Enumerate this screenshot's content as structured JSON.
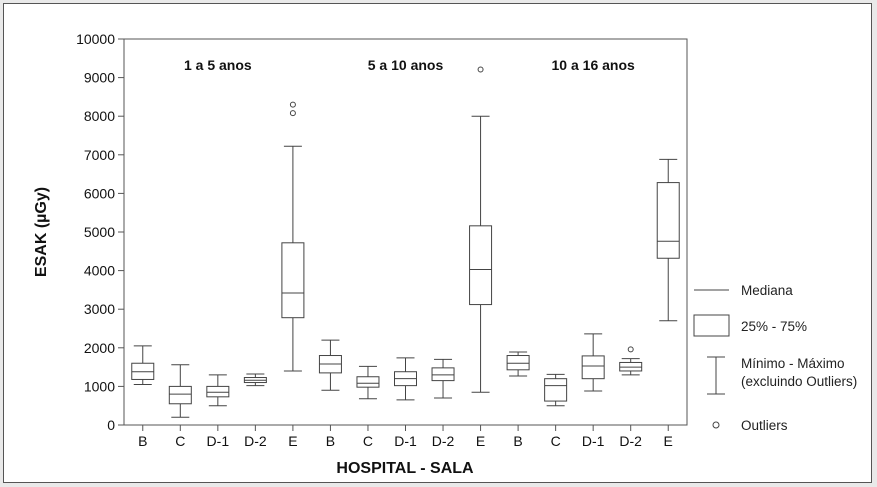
{
  "chart_data": {
    "type": "box",
    "ylabel": "ESAK (µGy)",
    "xlabel": "HOSPITAL - SALA",
    "ylim": [
      0,
      10000
    ],
    "yticks": [
      0,
      1000,
      2000,
      3000,
      4000,
      5000,
      6000,
      7000,
      8000,
      9000,
      10000
    ],
    "groups": [
      {
        "label": "1 a 5 anos",
        "boxes": [
          {
            "category": "B",
            "min": 1050,
            "q1": 1180,
            "median": 1380,
            "q3": 1600,
            "max": 2050,
            "outliers": []
          },
          {
            "category": "C",
            "min": 200,
            "q1": 550,
            "median": 800,
            "q3": 1000,
            "max": 1560,
            "outliers": []
          },
          {
            "category": "D-1",
            "min": 500,
            "q1": 730,
            "median": 850,
            "q3": 1000,
            "max": 1300,
            "outliers": []
          },
          {
            "category": "D-2",
            "min": 1020,
            "q1": 1100,
            "median": 1160,
            "q3": 1230,
            "max": 1320,
            "outliers": []
          },
          {
            "category": "E",
            "min": 1400,
            "q1": 2780,
            "median": 3420,
            "q3": 4720,
            "max": 7220,
            "outliers": [
              8080,
              8300
            ]
          }
        ]
      },
      {
        "label": "5 a 10 anos",
        "boxes": [
          {
            "category": "B",
            "min": 900,
            "q1": 1350,
            "median": 1580,
            "q3": 1800,
            "max": 2200,
            "outliers": []
          },
          {
            "category": "C",
            "min": 680,
            "q1": 980,
            "median": 1080,
            "q3": 1250,
            "max": 1520,
            "outliers": []
          },
          {
            "category": "D-1",
            "min": 650,
            "q1": 1020,
            "median": 1200,
            "q3": 1380,
            "max": 1740,
            "outliers": []
          },
          {
            "category": "D-2",
            "min": 700,
            "q1": 1150,
            "median": 1300,
            "q3": 1480,
            "max": 1700,
            "outliers": []
          },
          {
            "category": "E",
            "min": 850,
            "q1": 3120,
            "median": 4030,
            "q3": 5160,
            "max": 8000,
            "outliers": [
              9210
            ]
          }
        ]
      },
      {
        "label": "10 a 16 anos",
        "boxes": [
          {
            "category": "B",
            "min": 1270,
            "q1": 1430,
            "median": 1600,
            "q3": 1800,
            "max": 1890,
            "outliers": []
          },
          {
            "category": "C",
            "min": 500,
            "q1": 620,
            "median": 1020,
            "q3": 1200,
            "max": 1310,
            "outliers": []
          },
          {
            "category": "D-1",
            "min": 880,
            "q1": 1200,
            "median": 1530,
            "q3": 1790,
            "max": 2360,
            "outliers": []
          },
          {
            "category": "D-2",
            "min": 1300,
            "q1": 1400,
            "median": 1500,
            "q3": 1620,
            "max": 1720,
            "outliers": [
              1960
            ]
          },
          {
            "category": "E",
            "min": 2700,
            "q1": 4320,
            "median": 4760,
            "q3": 6280,
            "max": 6880,
            "outliers": []
          }
        ]
      }
    ],
    "legend": {
      "position": "right",
      "items": [
        {
          "symbol": "median-line",
          "label": "Mediana"
        },
        {
          "symbol": "box",
          "label": "25% - 75%"
        },
        {
          "symbol": "whisker",
          "label": "Mínimo - Máximo\n(excluindo Outliers)"
        },
        {
          "symbol": "circle",
          "label": "Outliers"
        }
      ]
    },
    "grid": false
  }
}
